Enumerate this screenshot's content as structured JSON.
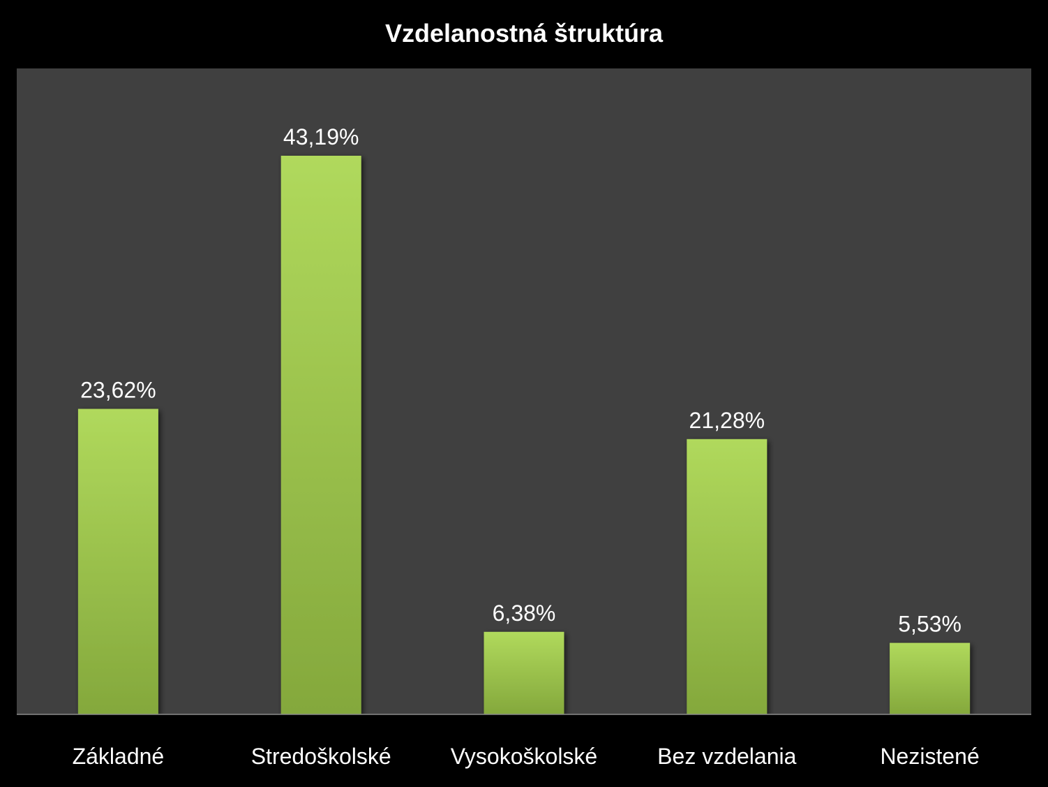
{
  "chart_data": {
    "type": "bar",
    "title": "Vzdelanostná štruktúra",
    "categories": [
      "Základné",
      "Stredoškolské",
      "Vysokoškolské",
      "Bez vzdelania",
      "Nezistené"
    ],
    "values": [
      23.62,
      43.19,
      6.38,
      21.28,
      5.53
    ],
    "data_labels": [
      "23,62%",
      "43,19%",
      "6,38%",
      "21,28%",
      "5,53%"
    ],
    "xlabel": "",
    "ylabel": "",
    "ylim": [
      0,
      50
    ],
    "grid": false,
    "legend": "none",
    "colors": {
      "background": "#000000",
      "plot_area": "#404040",
      "bar_top": "#b0d95c",
      "bar_bottom": "#84a83c",
      "text": "#ffffff",
      "axis": "#8c8c8c"
    }
  }
}
